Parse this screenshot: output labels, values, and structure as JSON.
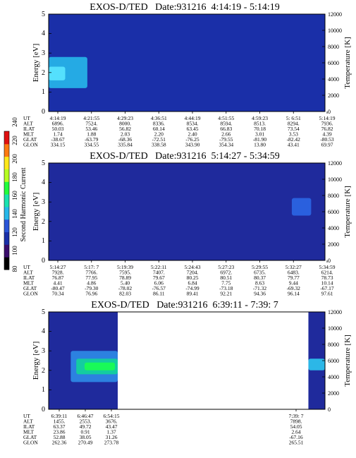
{
  "chart_data": [
    {
      "type": "heatmap",
      "title": "EXOS-D/TED   Date:931216  4:14:19 - 5:14:19",
      "ylabel": "Energy [eV]",
      "ylabel_right": "Temperature [K]",
      "ylim": [
        0,
        5
      ],
      "ylim_right": [
        0,
        12000
      ],
      "yticks": [
        "0",
        "1",
        "2",
        "3",
        "4",
        "5"
      ],
      "yticks_right": [
        "0",
        "2000",
        "4000",
        "6000",
        "8000",
        "10000",
        "12000"
      ],
      "background_color": "#1a2fa8",
      "features": [
        {
          "kind": "band",
          "x_start": 0.0,
          "x_end": 0.14,
          "energy_low": 1.2,
          "energy_high": 2.8,
          "color": "#27b8ea"
        },
        {
          "kind": "band",
          "x_start": 0.0,
          "x_end": 0.06,
          "energy_low": 1.6,
          "energy_high": 2.3,
          "color": "#5ae6ff"
        }
      ],
      "orbit_labels": [
        "UT",
        "ALT",
        "ILAT",
        "MLT",
        "GLAT",
        "GLON"
      ],
      "orbit_columns": [
        [
          "4:14:19",
          "6896.",
          "50.03",
          "1.74",
          "-38.67",
          "334.15"
        ],
        [
          "4:21:55",
          "7524.",
          "53.46",
          "1.88",
          "-63.79",
          "334.55"
        ],
        [
          "4:29:23",
          "8000.",
          "56.82",
          "2.03",
          "-68.36",
          "335.84"
        ],
        [
          "4:36:51",
          "8336.",
          "60.14",
          "2.20",
          "-72.51",
          "338.58"
        ],
        [
          "4:44:19",
          "8534.",
          "63.45",
          "2.40",
          "-76.25",
          "343.90"
        ],
        [
          "4:51:55",
          "8594.",
          "66.83",
          "2.66",
          "-79.55",
          "354.34"
        ],
        [
          "4:59:23",
          "8513.",
          "70.18",
          "3.01",
          "-81.90",
          "13.80"
        ],
        [
          "5: 6:51",
          "8294.",
          "73.54",
          "3.53",
          "-82.42",
          "43.41"
        ],
        [
          "5:14:19",
          "7936.",
          "76.82",
          "4.39",
          "-80.53",
          "69.97"
        ]
      ]
    },
    {
      "type": "heatmap",
      "title": "EXOS-D/TED   Date:931216  5:14:27 - 5:34:59",
      "ylabel": "Energy [eV]",
      "ylabel_right": "Temperature [K]",
      "ylim": [
        0,
        5
      ],
      "ylim_right": [
        0,
        12000
      ],
      "yticks": [
        "0",
        "1",
        "2",
        "3",
        "4",
        "5"
      ],
      "yticks_right": [
        "0",
        "2000",
        "4000",
        "6000",
        "8000",
        "10000",
        "12000"
      ],
      "background_color": "#1f2a9c",
      "features": [
        {
          "kind": "band",
          "x_start": 0.88,
          "x_end": 0.95,
          "energy_low": 2.3,
          "energy_high": 3.2,
          "color": "#2b66e6"
        }
      ],
      "orbit_labels": [
        "UT",
        "ALT",
        "ILAT",
        "MLT",
        "GLAT",
        "GLON"
      ],
      "orbit_columns": [
        [
          "5:14:27",
          "7928.",
          "76.87",
          "4.41",
          "-80.47",
          "70.34"
        ],
        [
          "5:17: 7",
          "7766.",
          "77.95",
          "4.86",
          "-79.30",
          "76.96"
        ],
        [
          "5:19:39",
          "7595.",
          "78.89",
          "5.40",
          "-78.02",
          "82.03"
        ],
        [
          "5:22:11",
          "7407.",
          "79.67",
          "6.06",
          "-76.57",
          "86.11"
        ],
        [
          "5:24:43",
          "7204.",
          "80.25",
          "6.84",
          "-74.99",
          "89.41"
        ],
        [
          "5:27:23",
          "6972.",
          "80.51",
          "7.75",
          "-73.18",
          "92.21"
        ],
        [
          "5:29:55",
          "6735.",
          "80.37",
          "8.63",
          "-71.32",
          "94.36"
        ],
        [
          "5:32:27",
          "6483.",
          "79.77",
          "9.44",
          "-69.32",
          "96.14"
        ],
        [
          "5:34:59",
          "6214.",
          "78.73",
          "10.14",
          "-67.17",
          "97.61"
        ]
      ]
    },
    {
      "type": "heatmap",
      "title": "EXOS-D/TED   Date:931216  6:39:11 - 7:39: 7",
      "ylabel": "Energy [eV]",
      "ylabel_right": "Temperature [K]",
      "ylim": [
        0,
        5
      ],
      "ylim_right": [
        0,
        12000
      ],
      "yticks": [
        "0",
        "1",
        "2",
        "3",
        "4",
        "5"
      ],
      "yticks_right": [
        "0",
        "2000",
        "4000",
        "6000",
        "8000",
        "10000",
        "12000"
      ],
      "background_color": "#1f2a9c",
      "data_segments": [
        {
          "x_start": 0.0,
          "x_end": 0.25
        },
        {
          "x_start": 0.94,
          "x_end": 1.0
        }
      ],
      "features": [
        {
          "kind": "band",
          "x_start": 0.08,
          "x_end": 0.25,
          "energy_low": 1.4,
          "energy_high": 3.0,
          "color": "#2e8be8"
        },
        {
          "kind": "band",
          "x_start": 0.1,
          "x_end": 0.25,
          "energy_low": 1.8,
          "energy_high": 2.6,
          "color": "#12d49a"
        },
        {
          "kind": "band",
          "x_start": 0.13,
          "x_end": 0.24,
          "energy_low": 2.0,
          "energy_high": 2.4,
          "color": "#1aff50"
        },
        {
          "kind": "band",
          "x_start": 0.94,
          "x_end": 1.0,
          "energy_low": 2.0,
          "energy_high": 2.6,
          "color": "#2ec6f0"
        }
      ],
      "orbit_labels": [
        "UT",
        "ALT",
        "ILAT",
        "MLT",
        "GLAT",
        "GLON"
      ],
      "orbit_columns": [
        [
          "6:39:11",
          "1455.",
          "63.37",
          "23.86",
          "52.88",
          "262.36"
        ],
        [
          "6:46:47",
          "2553.",
          "49.72",
          "0.91",
          "38.05",
          "270.49"
        ],
        [
          "6:54:15",
          "3676.",
          "43.47",
          "1.37",
          "31.26",
          "273.78"
        ],
        [
          "7:39: 7",
          "7898.",
          "54.05",
          "2.64",
          "-67.16",
          "265.51"
        ]
      ]
    }
  ],
  "colorbar": {
    "label": "Second Harmonic Current",
    "ticks": [
      "80",
      "100",
      "120",
      "140",
      "160",
      "180",
      "200",
      "220",
      "240"
    ],
    "colors": [
      "#000000",
      "#3a0d6b",
      "#1a2fa8",
      "#2a55d8",
      "#27b8ea",
      "#19e3b0",
      "#22ff3c",
      "#b6ff22",
      "#ffe81a",
      "#ff7a10",
      "#e01010"
    ]
  }
}
